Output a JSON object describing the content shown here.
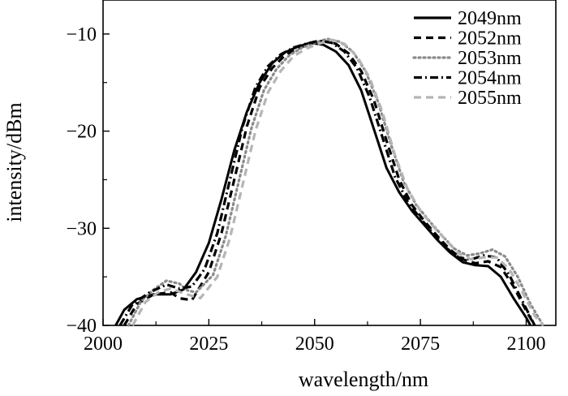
{
  "chart_data": {
    "type": "line",
    "title": "",
    "xlabel": "wavelength/nm",
    "ylabel": "intensity/dBm",
    "xlim": [
      2000,
      2107
    ],
    "ylim": [
      -40,
      -6.5
    ],
    "xticks": [
      2000,
      2025,
      2050,
      2075,
      2100
    ],
    "xtick_labels": [
      "2000",
      "2025",
      "2050",
      "2075",
      "2100"
    ],
    "yticks": [
      -10,
      -20,
      -30,
      -40
    ],
    "ytick_labels": [
      "−10",
      "−20",
      "−30",
      "−40"
    ],
    "grid": false,
    "legend_position": "top-right",
    "series": [
      {
        "name": "2049nm",
        "color": "#000000",
        "dash": "solid",
        "points": [
          [
            2003,
            -40
          ],
          [
            2005,
            -38.4
          ],
          [
            2008,
            -37.3
          ],
          [
            2012,
            -36.8
          ],
          [
            2016,
            -36.8
          ],
          [
            2019,
            -36.3
          ],
          [
            2022,
            -34.5
          ],
          [
            2025,
            -31.5
          ],
          [
            2028,
            -27
          ],
          [
            2031,
            -22
          ],
          [
            2034,
            -18
          ],
          [
            2037,
            -15
          ],
          [
            2040,
            -13
          ],
          [
            2043,
            -11.9
          ],
          [
            2046,
            -11.3
          ],
          [
            2049,
            -10.9
          ],
          [
            2052,
            -11.1
          ],
          [
            2055,
            -11.8
          ],
          [
            2058,
            -13.2
          ],
          [
            2061,
            -15.8
          ],
          [
            2064,
            -19.8
          ],
          [
            2067,
            -23.8
          ],
          [
            2070,
            -26.3
          ],
          [
            2073,
            -28.2
          ],
          [
            2076,
            -29.7
          ],
          [
            2079,
            -31.2
          ],
          [
            2082,
            -32.5
          ],
          [
            2085,
            -33.5
          ],
          [
            2088,
            -33.8
          ],
          [
            2091,
            -33.9
          ],
          [
            2094,
            -35
          ],
          [
            2097,
            -37.2
          ],
          [
            2100,
            -39.2
          ],
          [
            2101,
            -40
          ]
        ]
      },
      {
        "name": "2052nm",
        "color": "#000000",
        "dash": "dashed",
        "points": [
          [
            2005,
            -40
          ],
          [
            2008,
            -37.8
          ],
          [
            2012,
            -36.8
          ],
          [
            2016,
            -36.6
          ],
          [
            2018,
            -37.2
          ],
          [
            2021,
            -37.4
          ],
          [
            2025,
            -34.5
          ],
          [
            2028,
            -30.5
          ],
          [
            2031,
            -25
          ],
          [
            2034,
            -19.5
          ],
          [
            2037,
            -15.5
          ],
          [
            2040,
            -13.5
          ],
          [
            2043,
            -12.2
          ],
          [
            2046,
            -11.5
          ],
          [
            2049,
            -11
          ],
          [
            2052,
            -10.7
          ],
          [
            2055,
            -11
          ],
          [
            2058,
            -12
          ],
          [
            2061,
            -13.8
          ],
          [
            2064,
            -16.8
          ],
          [
            2067,
            -21
          ],
          [
            2070,
            -25
          ],
          [
            2073,
            -27.6
          ],
          [
            2076,
            -29.3
          ],
          [
            2079,
            -30.8
          ],
          [
            2082,
            -32.2
          ],
          [
            2085,
            -33.2
          ],
          [
            2088,
            -33.6
          ],
          [
            2091,
            -33.4
          ],
          [
            2094,
            -34
          ],
          [
            2097,
            -36
          ],
          [
            2100,
            -38.5
          ],
          [
            2102,
            -40
          ]
        ]
      },
      {
        "name": "2053nm",
        "color": "#8a8a8a",
        "dash": "dotted",
        "points": [
          [
            2006,
            -40
          ],
          [
            2009,
            -37.5
          ],
          [
            2012,
            -36.3
          ],
          [
            2015,
            -35.4
          ],
          [
            2018,
            -35.7
          ],
          [
            2020,
            -36.4
          ],
          [
            2022,
            -36.6
          ],
          [
            2026,
            -34.8
          ],
          [
            2029,
            -30.8
          ],
          [
            2032,
            -25.3
          ],
          [
            2035,
            -19.8
          ],
          [
            2038,
            -15.8
          ],
          [
            2041,
            -13.6
          ],
          [
            2044,
            -12.2
          ],
          [
            2047,
            -11.4
          ],
          [
            2050,
            -10.9
          ],
          [
            2053,
            -10.5
          ],
          [
            2056,
            -10.8
          ],
          [
            2059,
            -11.8
          ],
          [
            2062,
            -13.8
          ],
          [
            2065,
            -17
          ],
          [
            2068,
            -21.3
          ],
          [
            2071,
            -25.2
          ],
          [
            2074,
            -27.6
          ],
          [
            2077,
            -29.2
          ],
          [
            2080,
            -30.7
          ],
          [
            2083,
            -32.1
          ],
          [
            2086,
            -32.8
          ],
          [
            2089,
            -32.6
          ],
          [
            2092,
            -32.2
          ],
          [
            2095,
            -32.9
          ],
          [
            2098,
            -35
          ],
          [
            2101,
            -37.8
          ],
          [
            2104,
            -40
          ]
        ]
      },
      {
        "name": "2054nm",
        "color": "#000000",
        "dash": "dashdot",
        "points": [
          [
            2004,
            -40
          ],
          [
            2007,
            -37.8
          ],
          [
            2011,
            -36.6
          ],
          [
            2015,
            -35.8
          ],
          [
            2018,
            -36.2
          ],
          [
            2021,
            -36
          ],
          [
            2024,
            -34.2
          ],
          [
            2027,
            -30.5
          ],
          [
            2030,
            -25
          ],
          [
            2033,
            -19.5
          ],
          [
            2036,
            -15.5
          ],
          [
            2039,
            -13.3
          ],
          [
            2042,
            -12.1
          ],
          [
            2045,
            -11.4
          ],
          [
            2048,
            -11
          ],
          [
            2051,
            -10.7
          ],
          [
            2054,
            -10.9
          ],
          [
            2057,
            -11.8
          ],
          [
            2060,
            -13.5
          ],
          [
            2063,
            -16.5
          ],
          [
            2066,
            -20.6
          ],
          [
            2069,
            -24.7
          ],
          [
            2072,
            -27.3
          ],
          [
            2075,
            -29
          ],
          [
            2078,
            -30.5
          ],
          [
            2081,
            -32
          ],
          [
            2084,
            -33
          ],
          [
            2087,
            -33.2
          ],
          [
            2090,
            -32.8
          ],
          [
            2093,
            -33
          ],
          [
            2096,
            -34.8
          ],
          [
            2099,
            -37.4
          ],
          [
            2102,
            -40
          ]
        ]
      },
      {
        "name": "2055nm",
        "color": "#b5b5b5",
        "dash": "dashed",
        "points": [
          [
            2007,
            -40
          ],
          [
            2010,
            -37.6
          ],
          [
            2013,
            -36.6
          ],
          [
            2016,
            -36.2
          ],
          [
            2019,
            -36.7
          ],
          [
            2023,
            -37.2
          ],
          [
            2027,
            -35
          ],
          [
            2030,
            -31
          ],
          [
            2033,
            -25.5
          ],
          [
            2036,
            -20
          ],
          [
            2039,
            -16
          ],
          [
            2042,
            -13.8
          ],
          [
            2045,
            -12.3
          ],
          [
            2048,
            -11.5
          ],
          [
            2051,
            -11
          ],
          [
            2054,
            -10.6
          ],
          [
            2057,
            -11
          ],
          [
            2060,
            -12.3
          ],
          [
            2063,
            -14.5
          ],
          [
            2066,
            -18
          ],
          [
            2069,
            -22.5
          ],
          [
            2072,
            -26
          ],
          [
            2075,
            -28.2
          ],
          [
            2078,
            -29.8
          ],
          [
            2081,
            -31.2
          ],
          [
            2084,
            -32.6
          ],
          [
            2087,
            -33.2
          ],
          [
            2090,
            -33
          ],
          [
            2093,
            -33
          ],
          [
            2096,
            -34.2
          ],
          [
            2099,
            -36.5
          ],
          [
            2102,
            -39
          ],
          [
            2104,
            -40
          ]
        ]
      }
    ]
  }
}
